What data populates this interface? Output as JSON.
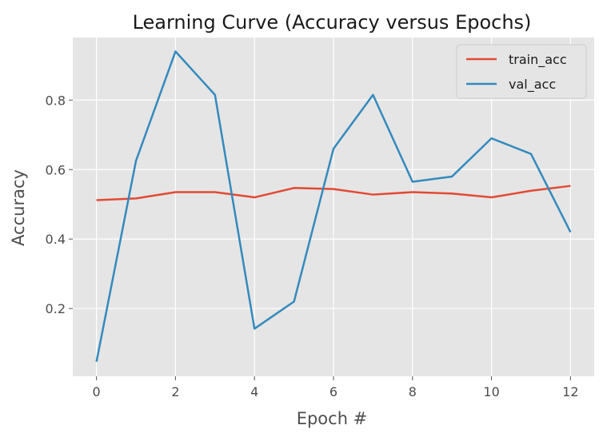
{
  "chart_data": {
    "type": "line",
    "title": "Learning Curve (Accuracy versus Epochs)",
    "xlabel": "Epoch #",
    "ylabel": "Accuracy",
    "x": [
      0,
      1,
      2,
      3,
      4,
      5,
      6,
      7,
      8,
      9,
      10,
      11,
      12
    ],
    "xlim": [
      -0.6,
      12.6
    ],
    "ylim": [
      0.005,
      0.98
    ],
    "xticks": [
      "0",
      "2",
      "4",
      "6",
      "8",
      "10",
      "12"
    ],
    "yticks": [
      "0.2",
      "0.4",
      "0.6",
      "0.8"
    ],
    "grid": true,
    "legend_position": "top-right",
    "series": [
      {
        "name": "train_acc",
        "color": "#e24a33",
        "values": [
          0.512,
          0.517,
          0.535,
          0.535,
          0.52,
          0.547,
          0.544,
          0.528,
          0.535,
          0.531,
          0.52,
          0.539,
          0.553
        ]
      },
      {
        "name": "val_acc",
        "color": "#348abd",
        "values": [
          0.047,
          0.625,
          0.94,
          0.815,
          0.142,
          0.22,
          0.66,
          0.815,
          0.565,
          0.58,
          0.69,
          0.645,
          0.42
        ]
      }
    ],
    "colors": {
      "plot_background": "#e5e5e5",
      "grid": "#ffffff"
    }
  }
}
